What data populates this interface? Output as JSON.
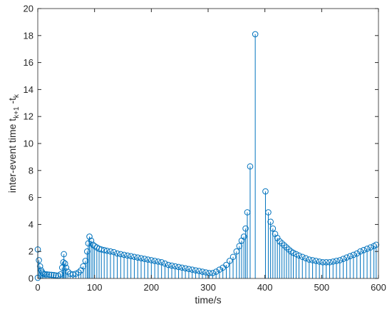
{
  "chart_data": {
    "type": "stem",
    "x_label": "time/s",
    "y_label": {
      "text": "inter-event time t",
      "sub1": "k+1",
      "mid": " -t",
      "sub2": "k"
    },
    "color": "#0072bd",
    "xlim": [
      0,
      600
    ],
    "xticks": [
      0,
      100,
      200,
      300,
      400,
      500,
      600
    ],
    "ylim": [
      0,
      20
    ],
    "yticks": [
      0,
      2,
      4,
      6,
      8,
      10,
      12,
      14,
      16,
      18,
      20
    ],
    "grid": false,
    "x": [
      0,
      0,
      2,
      4,
      6,
      8,
      10,
      13,
      16,
      20,
      24,
      28,
      32,
      36,
      40,
      43,
      45,
      46,
      48,
      50,
      53,
      57,
      62,
      67,
      72,
      76,
      80,
      84,
      87,
      89,
      91,
      94,
      97,
      100,
      104,
      108,
      112,
      117,
      122,
      128,
      134,
      140,
      146,
      152,
      158,
      164,
      170,
      176,
      182,
      188,
      194,
      200,
      206,
      212,
      218,
      224,
      230,
      236,
      242,
      248,
      254,
      260,
      266,
      272,
      278,
      284,
      290,
      296,
      302,
      308,
      314,
      320,
      326,
      332,
      338,
      344,
      350,
      355,
      359,
      363,
      366,
      369,
      374,
      383,
      401,
      406,
      410,
      414,
      418,
      422,
      426,
      430,
      434,
      438,
      442,
      446,
      450,
      455,
      460,
      466,
      472,
      478,
      484,
      490,
      496,
      502,
      508,
      514,
      520,
      526,
      532,
      538,
      544,
      550,
      556,
      562,
      568,
      574,
      580,
      586,
      592,
      596
    ],
    "values": [
      0.05,
      2.15,
      1.35,
      0.9,
      0.6,
      0.45,
      0.35,
      0.3,
      0.3,
      0.28,
      0.27,
      0.25,
      0.22,
      0.2,
      0.3,
      0.8,
      1.2,
      1.8,
      1.1,
      0.8,
      0.5,
      0.35,
      0.3,
      0.35,
      0.45,
      0.6,
      0.9,
      1.3,
      2.0,
      2.6,
      3.1,
      2.8,
      2.5,
      2.4,
      2.3,
      2.2,
      2.15,
      2.1,
      2.05,
      2.0,
      1.95,
      1.85,
      1.8,
      1.75,
      1.7,
      1.65,
      1.6,
      1.55,
      1.5,
      1.45,
      1.4,
      1.35,
      1.3,
      1.25,
      1.2,
      1.1,
      1.0,
      0.95,
      0.9,
      0.85,
      0.8,
      0.75,
      0.7,
      0.65,
      0.6,
      0.55,
      0.5,
      0.45,
      0.4,
      0.4,
      0.5,
      0.65,
      0.8,
      1.0,
      1.3,
      1.6,
      2.0,
      2.4,
      2.8,
      3.1,
      3.7,
      4.9,
      8.3,
      18.1,
      6.45,
      4.9,
      4.2,
      3.7,
      3.3,
      3.0,
      2.75,
      2.6,
      2.45,
      2.3,
      2.15,
      2.0,
      1.9,
      1.8,
      1.7,
      1.6,
      1.5,
      1.4,
      1.35,
      1.3,
      1.25,
      1.2,
      1.2,
      1.2,
      1.25,
      1.3,
      1.35,
      1.45,
      1.55,
      1.65,
      1.75,
      1.85,
      2.0,
      2.1,
      2.2,
      2.3,
      2.4,
      2.5
    ]
  }
}
